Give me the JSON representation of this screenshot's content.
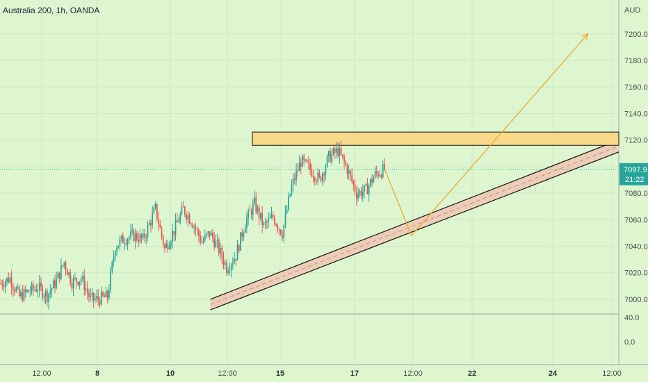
{
  "chart_data": {
    "type": "candlestick",
    "title": "Australia 200, 1h, OANDA",
    "currency": "AUD",
    "price_axis": {
      "ylim": [
        6990,
        7214
      ],
      "ticks": [
        "7000.0",
        "7020.0",
        "7040.0",
        "7060.0",
        "7080.0",
        "7100.0",
        "7120.0",
        "7140.0",
        "7160.0",
        "7180.0",
        "7200.0"
      ]
    },
    "indicator_axis": {
      "ticks": [
        "40.0",
        "0.0"
      ]
    },
    "time_axis": {
      "ticks": [
        {
          "label": "12:00",
          "bold": false
        },
        {
          "label": "8",
          "bold": true
        },
        {
          "label": "10",
          "bold": true
        },
        {
          "label": "12:00",
          "bold": false
        },
        {
          "label": "15",
          "bold": true
        },
        {
          "label": "17",
          "bold": true
        },
        {
          "label": "12:00",
          "bold": false
        },
        {
          "label": "22",
          "bold": true
        },
        {
          "label": "24",
          "bold": true
        },
        {
          "label": "12:00",
          "bold": false
        }
      ]
    },
    "last_price": {
      "value": "7097.9",
      "countdown": "21:22",
      "color": "#26a69a"
    },
    "colors": {
      "up": "#26a69a",
      "down": "#ef5350",
      "resistance_fill": "#f8d98a",
      "channel_fill": "#efc7b4",
      "projection": "#f5a623"
    },
    "resistance_zone": {
      "price_low": 7116,
      "price_high": 7126
    },
    "price_path": [
      [
        0,
        7012
      ],
      [
        6,
        7016
      ],
      [
        12,
        7002
      ],
      [
        18,
        7006
      ],
      [
        24,
        7009
      ],
      [
        30,
        7003
      ],
      [
        36,
        7014
      ],
      [
        41,
        7028
      ],
      [
        46,
        7013
      ],
      [
        52,
        7016
      ],
      [
        58,
        7000
      ],
      [
        63,
        7000
      ],
      [
        69,
        7002
      ],
      [
        74,
        7040
      ],
      [
        80,
        7046
      ],
      [
        86,
        7048
      ],
      [
        92,
        7045
      ],
      [
        100,
        7068
      ],
      [
        106,
        7038
      ],
      [
        112,
        7052
      ],
      [
        118,
        7068
      ],
      [
        124,
        7058
      ],
      [
        130,
        7043
      ],
      [
        135,
        7050
      ],
      [
        140,
        7040
      ],
      [
        146,
        7024
      ],
      [
        152,
        7033
      ],
      [
        158,
        7058
      ],
      [
        164,
        7072
      ],
      [
        170,
        7055
      ],
      [
        176,
        7062
      ],
      [
        182,
        7050
      ],
      [
        188,
        7085
      ],
      [
        194,
        7104
      ],
      [
        200,
        7098
      ],
      [
        206,
        7090
      ],
      [
        212,
        7107
      ],
      [
        218,
        7112
      ],
      [
        224,
        7098
      ],
      [
        230,
        7080
      ],
      [
        236,
        7082
      ],
      [
        242,
        7094
      ],
      [
        248,
        7098
      ]
    ],
    "last_bar_index": 248,
    "trend_lines": [
      {
        "from": [
          136,
          6992
        ],
        "to": [
          400,
          7111
        ]
      },
      {
        "from": [
          136,
          7000
        ],
        "to": [
          400,
          7120
        ]
      }
    ],
    "projection": [
      [
        249,
        7097
      ],
      [
        266,
        7048
      ],
      [
        380,
        7200
      ]
    ]
  }
}
